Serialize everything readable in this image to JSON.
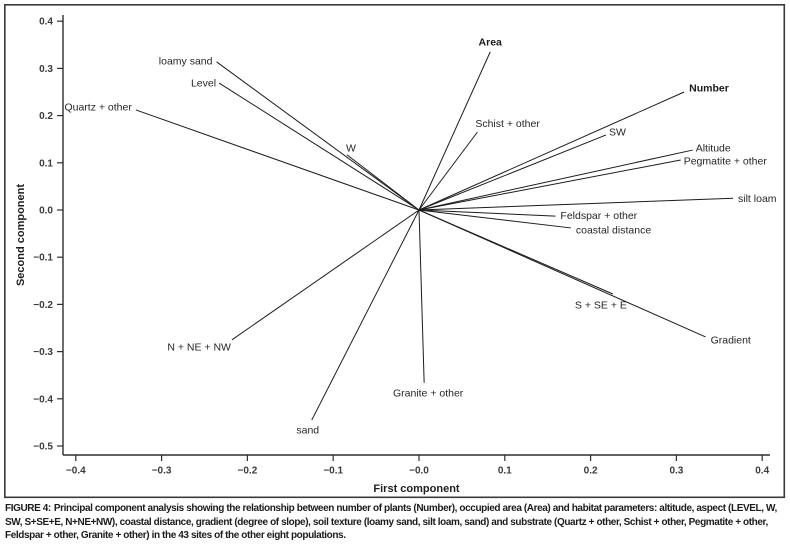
{
  "figure": {
    "caption_label": "FIGURE 4:",
    "caption_text": "Principal component analysis showing the relationship between number of plants (Number), occupied area (Area) and habitat parameters: altitude, aspect (LEVEL, W, SW, S+SE+E, N+NE+NW), coastal distance, gradient (degree of slope), soil texture (loamy sand, silt loam, sand) and substrate (Quartz + other, Schist + other, Pegmatite + other, Feldspar + other, Granite + other) in the 43 sites of the other eight populations."
  },
  "colors": {
    "vector_line": "#1c1c1c",
    "axis_line": "#2e2e2e",
    "border": "#3a3a3a",
    "text": "#262626"
  },
  "chart_data": {
    "type": "scatter",
    "subtype": "pca-loading-vector-biplot",
    "title": "",
    "xlabel": "First component",
    "ylabel": "Second component",
    "xlim": [
      -0.42,
      0.41
    ],
    "ylim": [
      -0.52,
      0.42
    ],
    "grid": false,
    "legend": "none",
    "origin": [
      0.0,
      0.0
    ],
    "x_ticks": {
      "values": [
        -0.4,
        -0.3,
        -0.2,
        -0.1,
        0.0,
        0.1,
        0.2,
        0.3,
        0.4
      ],
      "labels": [
        "−0.4",
        "−0.3",
        "−0.2",
        "−0.1",
        "−0.0",
        "0.1",
        "0.2",
        "0.3",
        "0.4"
      ]
    },
    "y_ticks": {
      "values": [
        0.4,
        0.3,
        0.2,
        0.1,
        0.0,
        -0.1,
        -0.2,
        -0.3,
        -0.4,
        -0.5
      ],
      "labels": [
        "0.4",
        "0.3",
        "0.2",
        "0.1",
        "0.0",
        "−0.1",
        "−0.2",
        "−0.3",
        "−0.4",
        "−0.5"
      ]
    },
    "vectors": [
      {
        "label": "Area",
        "x": 0.083,
        "y": 0.335,
        "bold": true,
        "anchor": "middle",
        "ldx": 0,
        "ldy": -10
      },
      {
        "label": "Number",
        "x": 0.309,
        "y": 0.25,
        "bold": true,
        "anchor": "start",
        "ldx": 5,
        "ldy": -4
      },
      {
        "label": "loamy sand",
        "x": -0.236,
        "y": 0.314,
        "bold": false,
        "anchor": "end",
        "ldx": -4,
        "ldy": -1
      },
      {
        "label": "Level",
        "x": -0.233,
        "y": 0.269,
        "bold": false,
        "anchor": "end",
        "ldx": -3,
        "ldy": 0
      },
      {
        "label": "Quartz + other",
        "x": -0.33,
        "y": 0.212,
        "bold": false,
        "anchor": "end",
        "ldx": -4,
        "ldy": -3
      },
      {
        "label": "W",
        "x": -0.084,
        "y": 0.117,
        "bold": false,
        "anchor": "middle",
        "ldx": 4,
        "ldy": -7
      },
      {
        "label": "Schist + other",
        "x": 0.068,
        "y": 0.165,
        "bold": false,
        "anchor": "start",
        "ldx": -2,
        "ldy": -9
      },
      {
        "label": "SW",
        "x": 0.218,
        "y": 0.159,
        "bold": false,
        "anchor": "start",
        "ldx": 3,
        "ldy": -3
      },
      {
        "label": "Altitude",
        "x": 0.319,
        "y": 0.127,
        "bold": false,
        "anchor": "start",
        "ldx": 3,
        "ldy": -2
      },
      {
        "label": "Pegmatite + other",
        "x": 0.305,
        "y": 0.106,
        "bold": false,
        "anchor": "start",
        "ldx": 3,
        "ldy": 1
      },
      {
        "label": "silt loam",
        "x": 0.366,
        "y": 0.025,
        "bold": false,
        "anchor": "start",
        "ldx": 5,
        "ldy": 0
      },
      {
        "label": "Feldspar + other",
        "x": 0.159,
        "y": -0.013,
        "bold": false,
        "anchor": "start",
        "ldx": 5,
        "ldy": -1
      },
      {
        "label": "coastal distance",
        "x": 0.177,
        "y": -0.038,
        "bold": false,
        "anchor": "start",
        "ldx": 5,
        "ldy": 2
      },
      {
        "label": "S + SE + E",
        "x": 0.226,
        "y": -0.178,
        "bold": false,
        "anchor": "middle",
        "ldx": -12,
        "ldy": 11
      },
      {
        "label": "Gradient",
        "x": 0.334,
        "y": -0.269,
        "bold": false,
        "anchor": "start",
        "ldx": 5,
        "ldy": 3
      },
      {
        "label": "Granite + other",
        "x": 0.006,
        "y": -0.366,
        "bold": false,
        "anchor": "middle",
        "ldx": 4,
        "ldy": 10
      },
      {
        "label": "N + NE + NW",
        "x": -0.218,
        "y": -0.275,
        "bold": false,
        "anchor": "end",
        "ldx": -1,
        "ldy": 7
      },
      {
        "label": "sand",
        "x": -0.125,
        "y": -0.445,
        "bold": false,
        "anchor": "middle",
        "ldx": -4,
        "ldy": 10
      }
    ]
  }
}
